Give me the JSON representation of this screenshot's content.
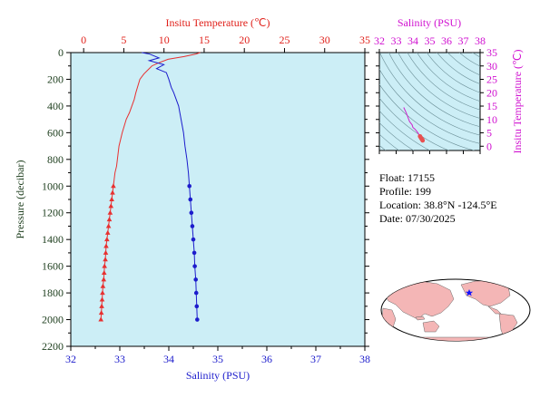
{
  "chart_data": [
    {
      "type": "line",
      "title": "",
      "y_axis": {
        "label": "Pressure (decibar)",
        "range": [
          0,
          2200
        ],
        "inverted": true,
        "ticks": [
          0,
          200,
          400,
          600,
          800,
          1000,
          1200,
          1400,
          1600,
          1800,
          2000,
          2200
        ]
      },
      "top_axis": {
        "label": "Insitu Temperature (℃)",
        "range": [
          -1.6,
          35
        ],
        "ticks": [
          0,
          5,
          10,
          15,
          20,
          25,
          30,
          35
        ],
        "color": "#e0201a"
      },
      "bottom_axis": {
        "label": "Salinity (PSU)",
        "range": [
          32,
          38
        ],
        "ticks": [
          32,
          33,
          34,
          35,
          36,
          37,
          38
        ],
        "color": "#1c1ccc"
      },
      "grid": false,
      "series": [
        {
          "color": "#e83030",
          "axis": "top",
          "marker": "triangle",
          "points": [
            [
              14.5,
              0
            ],
            [
              14.0,
              10
            ],
            [
              12.5,
              30
            ],
            [
              10.5,
              50
            ],
            [
              9.2,
              80
            ],
            [
              8.5,
              100
            ],
            [
              8.0,
              130
            ],
            [
              7.5,
              160
            ],
            [
              7.0,
              200
            ],
            [
              6.7,
              260
            ],
            [
              6.5,
              300
            ],
            [
              6.3,
              350
            ],
            [
              6.0,
              400
            ],
            [
              5.7,
              450
            ],
            [
              5.3,
              500
            ],
            [
              5.0,
              560
            ],
            [
              4.8,
              600
            ],
            [
              4.6,
              650
            ],
            [
              4.4,
              700
            ],
            [
              4.3,
              750
            ],
            [
              4.2,
              800
            ],
            [
              4.1,
              850
            ],
            [
              3.9,
              900
            ],
            [
              3.8,
              950
            ],
            [
              3.7,
              1000
            ],
            [
              3.6,
              1050
            ],
            [
              3.5,
              1100
            ],
            [
              3.4,
              1150
            ],
            [
              3.3,
              1200
            ],
            [
              3.2,
              1250
            ],
            [
              3.1,
              1300
            ],
            [
              3.0,
              1350
            ],
            [
              2.9,
              1400
            ],
            [
              2.8,
              1450
            ],
            [
              2.75,
              1500
            ],
            [
              2.7,
              1550
            ],
            [
              2.6,
              1600
            ],
            [
              2.55,
              1650
            ],
            [
              2.5,
              1700
            ],
            [
              2.4,
              1750
            ],
            [
              2.35,
              1800
            ],
            [
              2.3,
              1850
            ],
            [
              2.25,
              1900
            ],
            [
              2.2,
              1950
            ],
            [
              2.15,
              2000
            ]
          ],
          "marker_from_pressure": 1000
        },
        {
          "color": "#1c1ccc",
          "axis": "bottom",
          "marker": "circle",
          "points": [
            [
              33.45,
              0
            ],
            [
              33.6,
              10
            ],
            [
              33.8,
              40
            ],
            [
              33.6,
              60
            ],
            [
              33.9,
              90
            ],
            [
              33.75,
              120
            ],
            [
              33.95,
              150
            ],
            [
              34.0,
              200
            ],
            [
              34.05,
              260
            ],
            [
              34.1,
              300
            ],
            [
              34.2,
              400
            ],
            [
              34.25,
              500
            ],
            [
              34.3,
              600
            ],
            [
              34.33,
              700
            ],
            [
              34.37,
              800
            ],
            [
              34.4,
              900
            ],
            [
              34.42,
              1000
            ],
            [
              34.44,
              1100
            ],
            [
              34.46,
              1200
            ],
            [
              34.48,
              1300
            ],
            [
              34.5,
              1400
            ],
            [
              34.52,
              1500
            ],
            [
              34.53,
              1600
            ],
            [
              34.55,
              1700
            ],
            [
              34.56,
              1800
            ],
            [
              34.57,
              1900
            ],
            [
              34.58,
              2000
            ]
          ],
          "marker_from_pressure": 1000
        }
      ]
    },
    {
      "type": "scatter",
      "title": "",
      "x_axis": {
        "label": "Salinity (PSU)",
        "range": [
          32,
          38
        ],
        "ticks": [
          32,
          33,
          34,
          35,
          36,
          37,
          38
        ],
        "color": "#d010d0"
      },
      "y_axis": {
        "label": "Insitu Temperature (℃)",
        "range": [
          -1.6,
          35
        ],
        "ticks": [
          0,
          5,
          10,
          15,
          20,
          25,
          30,
          35
        ],
        "color": "#d010d0"
      },
      "series": [
        {
          "color": "#cc22cc",
          "points": [
            [
              33.45,
              14.5
            ],
            [
              33.6,
              12.5
            ],
            [
              33.8,
              9.2
            ],
            [
              33.95,
              8.0
            ],
            [
              34.0,
              7.0
            ],
            [
              34.1,
              6.5
            ],
            [
              34.2,
              5.8
            ],
            [
              34.3,
              5.0
            ],
            [
              34.37,
              4.2
            ],
            [
              34.42,
              3.7
            ],
            [
              34.46,
              3.3
            ],
            [
              34.5,
              2.9
            ],
            [
              34.53,
              2.6
            ],
            [
              34.56,
              2.35
            ],
            [
              34.58,
              2.15
            ]
          ],
          "deep_color": "#e85050"
        }
      ]
    }
  ],
  "float_info": {
    "float_label": "Float:",
    "float_value": "17155",
    "profile_label": "Profile:",
    "profile_value": "199",
    "location_label": "Location:",
    "location_value": "38.8°N  -124.5°E",
    "date_label": "Date:",
    "date_value": "07/30/2025"
  },
  "map": {
    "marker_lat": 38.8,
    "marker_lon": -124.5,
    "ocean_color": "#ffffff",
    "land_color": "#f4b6b6",
    "marker_color": "#1010ff"
  },
  "colors": {
    "plot_bg": "#cceef6",
    "axis": "#000000",
    "left_label": "#204020",
    "temperature": "#e0201a",
    "salinity": "#1c1ccc",
    "ts": "#d010d0"
  }
}
